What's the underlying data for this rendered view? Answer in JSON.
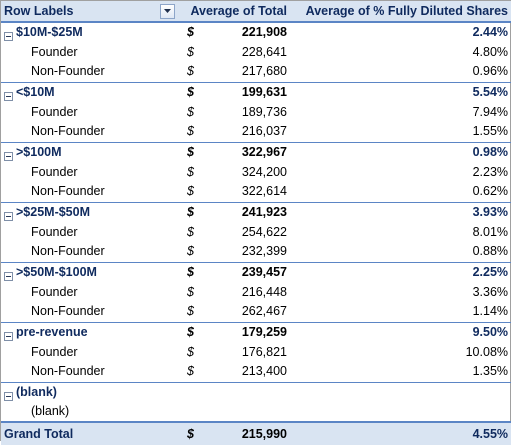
{
  "header": {
    "row_labels": "Row Labels",
    "col_avg_total": "Average of Total",
    "col_avg_pct": "Average of % Fully Diluted Shares"
  },
  "groups": [
    {
      "label": "$10M-$25M",
      "currency": "$",
      "avg_total": "221,908",
      "avg_pct": "2.44%",
      "children": [
        {
          "label": "Founder",
          "currency": "$",
          "avg_total": "228,641",
          "avg_pct": "4.80%"
        },
        {
          "label": "Non-Founder",
          "currency": "$",
          "avg_total": "217,680",
          "avg_pct": "0.96%"
        }
      ]
    },
    {
      "label": "<$10M",
      "currency": "$",
      "avg_total": "199,631",
      "avg_pct": "5.54%",
      "children": [
        {
          "label": "Founder",
          "currency": "$",
          "avg_total": "189,736",
          "avg_pct": "7.94%"
        },
        {
          "label": "Non-Founder",
          "currency": "$",
          "avg_total": "216,037",
          "avg_pct": "1.55%"
        }
      ]
    },
    {
      "label": ">$100M",
      "currency": "$",
      "avg_total": "322,967",
      "avg_pct": "0.98%",
      "children": [
        {
          "label": "Founder",
          "currency": "$",
          "avg_total": "324,200",
          "avg_pct": "2.23%"
        },
        {
          "label": "Non-Founder",
          "currency": "$",
          "avg_total": "322,614",
          "avg_pct": "0.62%"
        }
      ]
    },
    {
      "label": ">$25M-$50M",
      "currency": "$",
      "avg_total": "241,923",
      "avg_pct": "3.93%",
      "children": [
        {
          "label": "Founder",
          "currency": "$",
          "avg_total": "254,622",
          "avg_pct": "8.01%"
        },
        {
          "label": "Non-Founder",
          "currency": "$",
          "avg_total": "232,399",
          "avg_pct": "0.88%"
        }
      ]
    },
    {
      "label": ">$50M-$100M",
      "currency": "$",
      "avg_total": "239,457",
      "avg_pct": "2.25%",
      "children": [
        {
          "label": "Founder",
          "currency": "$",
          "avg_total": "216,448",
          "avg_pct": "3.36%"
        },
        {
          "label": "Non-Founder",
          "currency": "$",
          "avg_total": "262,467",
          "avg_pct": "1.14%"
        }
      ]
    },
    {
      "label": "pre-revenue",
      "currency": "$",
      "avg_total": "179,259",
      "avg_pct": "9.50%",
      "children": [
        {
          "label": "Founder",
          "currency": "$",
          "avg_total": "176,821",
          "avg_pct": "10.08%"
        },
        {
          "label": "Non-Founder",
          "currency": "$",
          "avg_total": "213,400",
          "avg_pct": "1.35%"
        }
      ]
    },
    {
      "label": "(blank)",
      "currency": "",
      "avg_total": "",
      "avg_pct": "",
      "children": [
        {
          "label": "(blank)",
          "currency": "",
          "avg_total": "",
          "avg_pct": ""
        }
      ]
    }
  ],
  "grand_total": {
    "label": "Grand Total",
    "currency": "$",
    "avg_total": "215,990",
    "avg_pct": "4.55%"
  },
  "icons": {
    "dropdown": "filter-dropdown-icon",
    "collapse": "collapse-minus-icon"
  },
  "colors": {
    "header_bg": "#d9e4f2",
    "header_text": "#0f2a5e",
    "rule": "#5b85c5"
  }
}
